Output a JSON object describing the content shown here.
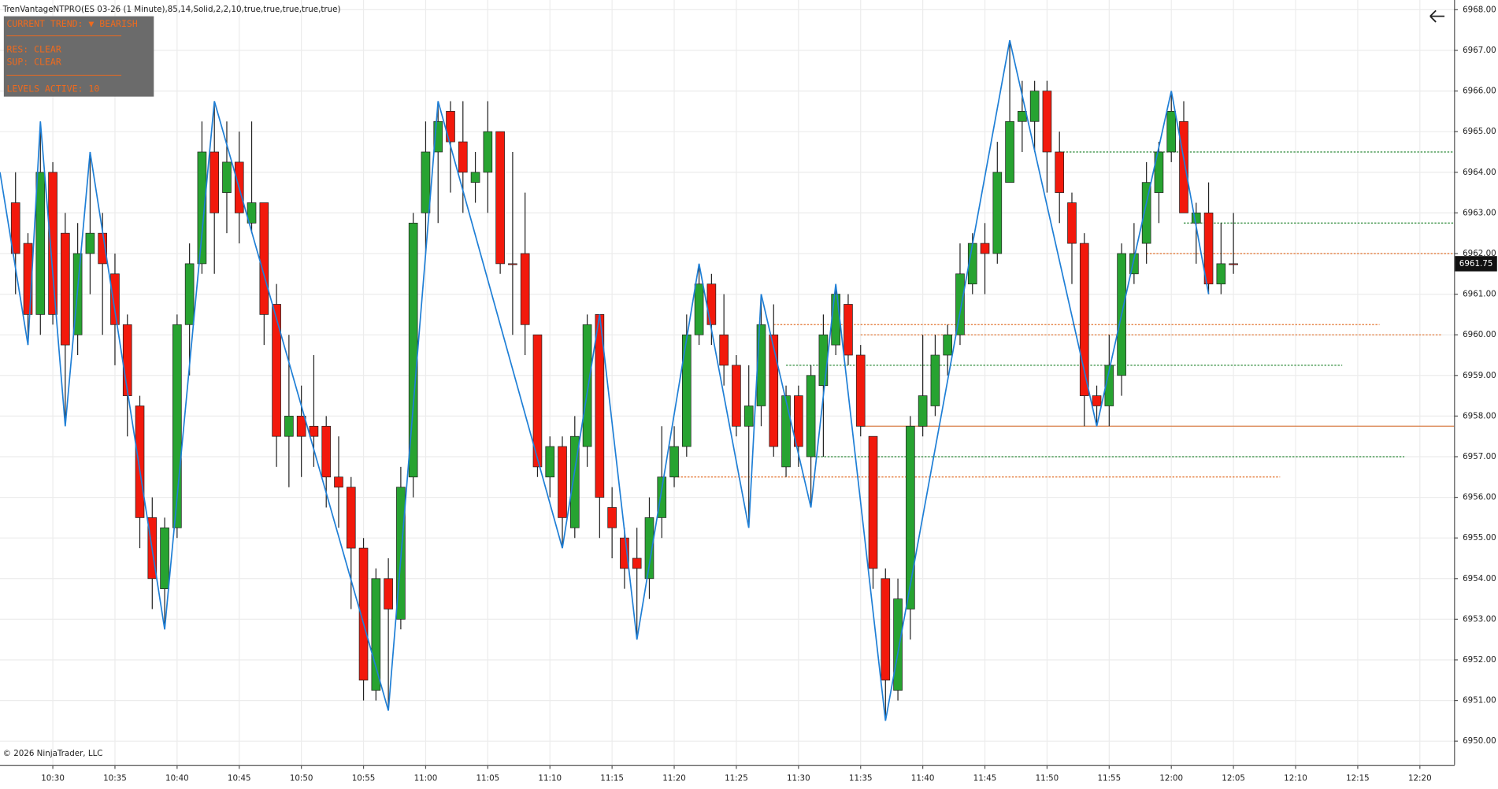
{
  "chart_data": {
    "type": "candlestick",
    "title": "TrenVantageNTPRO(ES 03-26 (1 Minute),85,14,Solid,2,2,10,true,true,true,true,true)",
    "footer": "© 2026 NinjaTrader, LLC",
    "panel_lines": [
      "CURRENT TREND: ▼ BEARISH",
      "─────────────────────",
      "RES: CLEAR",
      "SUP: CLEAR",
      "─────────────────────",
      "LEVELS ACTIVE: 10"
    ],
    "up_color": "#27a331",
    "down_color": "#f2190c",
    "x": [
      627,
      628,
      629,
      630,
      631,
      632,
      633,
      634,
      635,
      636,
      637,
      638,
      639,
      640,
      641,
      642,
      643,
      644,
      645,
      646,
      647,
      648,
      649,
      650,
      651,
      652,
      653,
      654,
      655,
      656,
      657,
      658,
      659,
      660,
      661,
      662,
      663,
      664,
      665,
      666,
      667,
      668,
      669,
      670,
      671,
      672,
      673,
      674,
      675,
      676,
      677,
      678,
      679,
      680,
      681,
      682,
      683,
      684,
      685,
      686,
      687,
      688,
      689,
      690,
      691,
      692,
      693,
      694,
      695,
      696,
      697,
      698,
      699,
      700,
      701,
      702,
      703,
      704,
      705,
      706,
      707,
      708,
      709,
      710,
      711,
      712,
      713,
      714,
      715,
      716,
      717,
      718,
      719,
      720,
      721,
      722,
      723,
      724,
      725
    ],
    "open": [
      6963.25,
      6962.25,
      6960.5,
      6964,
      6962.5,
      6960,
      6962,
      6962.5,
      6961.5,
      6960.25,
      6958.25,
      6955.5,
      6953.75,
      6955.25,
      6960.25,
      6961.75,
      6964.5,
      6963.5,
      6964.25,
      6962.75,
      6963.25,
      6960.75,
      6957.5,
      6958,
      6957.75,
      6957.75,
      6956.5,
      6956.25,
      6954.75,
      6951.25,
      6954,
      6953,
      6956.5,
      6963,
      6964.5,
      6965.5,
      6964.75,
      6963.75,
      6964,
      6965,
      6961.75,
      6962,
      6960,
      6956.5,
      6957.25,
      6955.25,
      6957.25,
      6960.5,
      6955.75,
      6955,
      6954.5,
      6954,
      6955.5,
      6956.5,
      6957.25,
      6960,
      6961.25,
      6960,
      6959.25,
      6957.75,
      6958.25,
      6960,
      6956.75,
      6958.5,
      6957,
      6958.75,
      6959.75,
      6960.75,
      6959.5,
      6957.5,
      6954,
      6951.25,
      6953.25,
      6957.75,
      6958.25,
      6959.5,
      6960,
      6961.25,
      6962.25,
      6962,
      6963.75,
      6965.25,
      6965.25,
      6966,
      6964.5,
      6963.25,
      6962.25,
      6958.5,
      6958.25,
      6959,
      6961.5,
      6962.25,
      6963.5,
      6964.5,
      6965.25,
      6962.75,
      6963,
      6961.25,
      6961.75
    ],
    "high": [
      6964,
      6962.5,
      6965.25,
      6964.25,
      6963,
      6962.75,
      6964.5,
      6963,
      6962,
      6960.5,
      6958.5,
      6956,
      6955.5,
      6960.5,
      6962.25,
      6965.25,
      6965.75,
      6965.25,
      6965,
      6965.25,
      6963.25,
      6961.25,
      6960,
      6958.75,
      6959.5,
      6958,
      6957.5,
      6956.5,
      6955,
      6954.25,
      6954.5,
      6956.75,
      6963,
      6965.25,
      6965.75,
      6965.75,
      6965.75,
      6964.5,
      6965.75,
      6965,
      6964.5,
      6963.5,
      6960,
      6957.5,
      6957.5,
      6958,
      6960.5,
      6960.5,
      6956.25,
      6955.25,
      6955.25,
      6956,
      6957.75,
      6957.75,
      6960.5,
      6961.75,
      6961.5,
      6961,
      6959.5,
      6959.25,
      6961,
      6960.75,
      6958.75,
      6958.75,
      6959.25,
      6960.5,
      6961.25,
      6961,
      6959.75,
      6957.5,
      6954.25,
      6954,
      6958,
      6960,
      6960,
      6960.25,
      6962.25,
      6962.5,
      6962.75,
      6964.75,
      6967.25,
      6966.25,
      6966.25,
      6966.25,
      6965,
      6963.5,
      6962.5,
      6958.75,
      6960,
      6962.25,
      6962.75,
      6964.25,
      6964.75,
      6966,
      6965.75,
      6963.25,
      6963.75,
      6962.75,
      6963
    ],
    "low": [
      6961,
      6959.75,
      6960,
      6960.25,
      6957.75,
      6959.5,
      6961,
      6960,
      6959.25,
      6957.5,
      6954.75,
      6953.25,
      6952.75,
      6955,
      6959,
      6961.5,
      6961.5,
      6962.5,
      6962.25,
      6962.5,
      6959.75,
      6956.75,
      6956.25,
      6956.5,
      6956.75,
      6955.75,
      6955.25,
      6953.25,
      6951,
      6951,
      6950.75,
      6952.75,
      6956,
      6962,
      6962.75,
      6963.5,
      6963,
      6963.25,
      6963,
      6961.5,
      6960,
      6959.5,
      6956.5,
      6956,
      6954.75,
      6955,
      6956.75,
      6955,
      6954.5,
      6953.75,
      6952.5,
      6953.5,
      6955,
      6956.25,
      6957,
      6959.75,
      6959.75,
      6958.75,
      6957.5,
      6955.25,
      6957.75,
      6957,
      6956.5,
      6956.75,
      6955.75,
      6957,
      6959.5,
      6959.25,
      6957.5,
      6953.75,
      6950.5,
      6951,
      6952.5,
      6957.5,
      6958,
      6959,
      6959.75,
      6961,
      6961,
      6961.75,
      6963.75,
      6964.5,
      6964.5,
      6963.5,
      6962.75,
      6961.25,
      6957.75,
      6957.75,
      6957.75,
      6958.5,
      6961.25,
      6961.75,
      6962.75,
      6964.25,
      6963,
      6961.75,
      6961,
      6961,
      6961.5
    ],
    "close": [
      6962,
      6960.5,
      6964,
      6960.5,
      6959.75,
      6962,
      6962.5,
      6961.75,
      6960.25,
      6958.5,
      6955.5,
      6954,
      6955.25,
      6960.25,
      6961.75,
      6964.5,
      6963,
      6964.25,
      6963,
      6963.25,
      6960.5,
      6957.5,
      6958,
      6957.5,
      6957.5,
      6956.5,
      6956.25,
      6954.75,
      6951.5,
      6954,
      6953.25,
      6956.25,
      6962.75,
      6964.5,
      6965.25,
      6964.75,
      6964,
      6964,
      6965,
      6961.75,
      6961.75,
      6960.25,
      6956.75,
      6957.25,
      6955.5,
      6957.5,
      6960.25,
      6956,
      6955.25,
      6954.25,
      6954.25,
      6955.5,
      6956.5,
      6957.25,
      6960,
      6961.25,
      6960.25,
      6959.25,
      6957.75,
      6958.25,
      6960.25,
      6957.25,
      6958.5,
      6957.25,
      6959,
      6960,
      6961,
      6959.5,
      6957.75,
      6954.25,
      6951.5,
      6953.5,
      6957.75,
      6958.5,
      6959.5,
      6960,
      6961.5,
      6962.25,
      6962,
      6964,
      6965.25,
      6965.5,
      6966,
      6964.5,
      6963.5,
      6962.25,
      6958.5,
      6958.25,
      6959.25,
      6962,
      6962,
      6963.75,
      6964.5,
      6965.5,
      6963,
      6963,
      6961.25,
      6961.75,
      6961.75
    ],
    "zigzag": {
      "color": "#1f7fd6",
      "x": [
        625.75,
        628,
        629,
        631,
        633,
        639,
        643,
        657,
        661,
        671,
        674,
        677,
        682,
        686,
        687,
        691,
        693,
        697,
        707,
        714,
        720,
        723
      ],
      "values": [
        6964,
        6959.75,
        6965.25,
        6957.75,
        6964.5,
        6952.75,
        6965.75,
        6950.75,
        6965.75,
        6954.75,
        6960.5,
        6952.5,
        6961.75,
        6955.25,
        6961,
        6955.75,
        6961.25,
        6950.5,
        6967.25,
        6957.75,
        6966,
        6961
      ]
    },
    "levels": [
      {
        "price": 6964.5,
        "start": 711,
        "end": 742.75,
        "color": "#2e8b3a",
        "dash": true
      },
      {
        "price": 6962.75,
        "start": 721,
        "end": 742.75,
        "color": "#2e8b3a",
        "dash": true
      },
      {
        "price": 6962,
        "start": 718,
        "end": 742.75,
        "color": "#e2722c",
        "dash": true
      },
      {
        "price": 6960.25,
        "start": 688,
        "end": 736.75,
        "color": "#e2722c",
        "dash": true
      },
      {
        "price": 6960,
        "start": 695,
        "end": 741.75,
        "color": "#e2722c",
        "dash": true
      },
      {
        "price": 6959.25,
        "start": 689,
        "end": 733.75,
        "color": "#2e8b3a",
        "dash": true
      },
      {
        "price": 6957.75,
        "start": 695,
        "end": 742.75,
        "color": "#d9804a",
        "dash": false
      },
      {
        "price": 6957,
        "start": 691,
        "end": 738.75,
        "color": "#2e8b3a",
        "dash": true
      },
      {
        "price": 6956.5,
        "start": 680,
        "end": 728.75,
        "color": "#e2722c",
        "dash": true
      }
    ],
    "last_price": 6961.75,
    "xlim": [
      625.75,
      742.75
    ],
    "xticks": [
      {
        "value": 630,
        "label": "10:30"
      },
      {
        "value": 635,
        "label": "10:35"
      },
      {
        "value": 640,
        "label": "10:40"
      },
      {
        "value": 645,
        "label": "10:45"
      },
      {
        "value": 650,
        "label": "10:50"
      },
      {
        "value": 655,
        "label": "10:55"
      },
      {
        "value": 660,
        "label": "11:00"
      },
      {
        "value": 665,
        "label": "11:05"
      },
      {
        "value": 670,
        "label": "11:10"
      },
      {
        "value": 675,
        "label": "11:15"
      },
      {
        "value": 680,
        "label": "11:20"
      },
      {
        "value": 685,
        "label": "11:25"
      },
      {
        "value": 690,
        "label": "11:30"
      },
      {
        "value": 695,
        "label": "11:35"
      },
      {
        "value": 700,
        "label": "11:40"
      },
      {
        "value": 705,
        "label": "11:45"
      },
      {
        "value": 710,
        "label": "11:50"
      },
      {
        "value": 715,
        "label": "11:55"
      },
      {
        "value": 720,
        "label": "12:00"
      },
      {
        "value": 725,
        "label": "12:05"
      },
      {
        "value": 730,
        "label": "12:10"
      },
      {
        "value": 735,
        "label": "12:15"
      },
      {
        "value": 740,
        "label": "12:20"
      }
    ],
    "ylim": [
      6949.41,
      6968.24
    ],
    "yticks": [
      {
        "value": 6950,
        "label": "6950.00"
      },
      {
        "value": 6951,
        "label": "6951.00"
      },
      {
        "value": 6952,
        "label": "6952.00"
      },
      {
        "value": 6953,
        "label": "6953.00"
      },
      {
        "value": 6954,
        "label": "6954.00"
      },
      {
        "value": 6955,
        "label": "6955.00"
      },
      {
        "value": 6956,
        "label": "6956.00"
      },
      {
        "value": 6957,
        "label": "6957.00"
      },
      {
        "value": 6958,
        "label": "6958.00"
      },
      {
        "value": 6959,
        "label": "6959.00"
      },
      {
        "value": 6960,
        "label": "6960.00"
      },
      {
        "value": 6961,
        "label": "6961.00"
      },
      {
        "value": 6962,
        "label": "6962.00"
      },
      {
        "value": 6963,
        "label": "6963.00"
      },
      {
        "value": 6964,
        "label": "6964.00"
      },
      {
        "value": 6965,
        "label": "6965.00"
      },
      {
        "value": 6966,
        "label": "6966.00"
      },
      {
        "value": 6967,
        "label": "6967.00"
      },
      {
        "value": 6968,
        "label": "6968.00"
      }
    ],
    "grid": true
  }
}
